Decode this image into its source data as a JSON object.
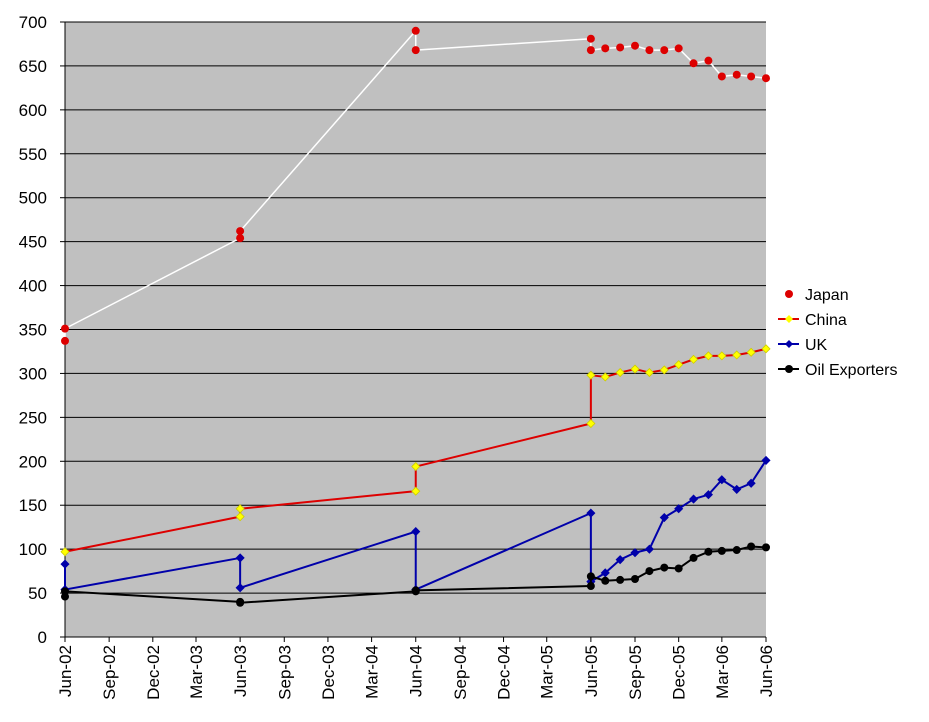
{
  "chart_data": {
    "type": "line",
    "title": "",
    "xlabel": "",
    "ylabel": "",
    "ylim": [
      0,
      700
    ],
    "yticks": [
      0,
      50,
      100,
      150,
      200,
      250,
      300,
      350,
      400,
      450,
      500,
      550,
      600,
      650,
      700
    ],
    "xlim": [
      "2002-06-01",
      "2006-06-01"
    ],
    "x_tick_dates": [
      "2002-06-01",
      "2002-09-01",
      "2002-12-01",
      "2003-03-01",
      "2003-06-01",
      "2003-09-01",
      "2003-12-01",
      "2004-03-01",
      "2004-06-01",
      "2004-09-01",
      "2004-12-01",
      "2005-03-01",
      "2005-06-01",
      "2005-09-01",
      "2005-12-01",
      "2006-03-01",
      "2006-06-01"
    ],
    "x_tick_labels": [
      "Jun-02",
      "Sep-02",
      "Dec-02",
      "Mar-03",
      "Jun-03",
      "Sep-03",
      "Dec-03",
      "Mar-04",
      "Jun-04",
      "Sep-04",
      "Dec-04",
      "Mar-05",
      "Jun-05",
      "Sep-05",
      "Dec-05",
      "Mar-06",
      "Jun-06"
    ],
    "grid": true,
    "plot_background": "#c0c0c0",
    "legend_position": "right",
    "series": [
      {
        "name": "Japan",
        "color": "#dd0000",
        "line_color": "#ffffff",
        "marker": "circle",
        "show_in_legend_line": false,
        "points": [
          [
            "2002-06-01",
            337
          ],
          [
            "2002-06-01",
            351
          ],
          [
            "2003-06-01",
            454
          ],
          [
            "2003-06-01",
            462
          ],
          [
            "2004-06-01",
            690
          ],
          [
            "2004-06-01",
            668
          ],
          [
            "2005-06-01",
            681
          ],
          [
            "2005-06-01",
            668
          ],
          [
            "2005-07-01",
            670
          ],
          [
            "2005-08-01",
            671
          ],
          [
            "2005-09-01",
            673
          ],
          [
            "2005-10-01",
            668
          ],
          [
            "2005-11-01",
            668
          ],
          [
            "2005-12-01",
            670
          ],
          [
            "2006-01-01",
            653
          ],
          [
            "2006-02-01",
            656
          ],
          [
            "2006-03-01",
            638
          ],
          [
            "2006-04-01",
            640
          ],
          [
            "2006-05-01",
            638
          ],
          [
            "2006-06-01",
            636
          ]
        ]
      },
      {
        "name": "China",
        "color": "#dd0000",
        "marker_color": "#ffff00",
        "marker": "diamond",
        "points": [
          [
            "2002-06-01",
            97
          ],
          [
            "2003-06-01",
            137
          ],
          [
            "2003-06-01",
            146
          ],
          [
            "2004-06-01",
            166
          ],
          [
            "2004-06-01",
            194
          ],
          [
            "2005-06-01",
            243
          ],
          [
            "2005-06-01",
            298
          ],
          [
            "2005-07-01",
            296
          ],
          [
            "2005-08-01",
            301
          ],
          [
            "2005-09-01",
            305
          ],
          [
            "2005-10-01",
            301
          ],
          [
            "2005-11-01",
            304
          ],
          [
            "2005-12-01",
            310
          ],
          [
            "2006-01-01",
            316
          ],
          [
            "2006-02-01",
            320
          ],
          [
            "2006-03-01",
            320
          ],
          [
            "2006-04-01",
            321
          ],
          [
            "2006-05-01",
            324
          ],
          [
            "2006-06-01",
            328
          ]
        ]
      },
      {
        "name": "UK",
        "color": "#0000aa",
        "marker_color": "#0000aa",
        "marker": "diamond",
        "points": [
          [
            "2002-06-01",
            83
          ],
          [
            "2002-06-01",
            54
          ],
          [
            "2003-06-01",
            90
          ],
          [
            "2003-06-01",
            56
          ],
          [
            "2004-06-01",
            120
          ],
          [
            "2004-06-01",
            54
          ],
          [
            "2005-06-01",
            141
          ],
          [
            "2005-06-01",
            63
          ],
          [
            "2005-07-01",
            73
          ],
          [
            "2005-08-01",
            88
          ],
          [
            "2005-09-01",
            96
          ],
          [
            "2005-10-01",
            100
          ],
          [
            "2005-11-01",
            136
          ],
          [
            "2005-12-01",
            146
          ],
          [
            "2006-01-01",
            157
          ],
          [
            "2006-02-01",
            162
          ],
          [
            "2006-03-01",
            179
          ],
          [
            "2006-04-01",
            168
          ],
          [
            "2006-05-01",
            175
          ],
          [
            "2006-06-01",
            201
          ]
        ]
      },
      {
        "name": "Oil Exporters",
        "color": "#000000",
        "marker_color": "#000000",
        "marker": "circle",
        "points": [
          [
            "2002-06-01",
            46
          ],
          [
            "2002-06-01",
            52
          ],
          [
            "2003-06-01",
            40
          ],
          [
            "2003-06-01",
            39
          ],
          [
            "2004-06-01",
            52
          ],
          [
            "2004-06-01",
            53
          ],
          [
            "2005-06-01",
            58
          ],
          [
            "2005-06-01",
            69
          ],
          [
            "2005-07-01",
            64
          ],
          [
            "2005-08-01",
            65
          ],
          [
            "2005-09-01",
            66
          ],
          [
            "2005-10-01",
            75
          ],
          [
            "2005-11-01",
            79
          ],
          [
            "2005-12-01",
            78
          ],
          [
            "2006-01-01",
            90
          ],
          [
            "2006-02-01",
            97
          ],
          [
            "2006-03-01",
            98
          ],
          [
            "2006-04-01",
            99
          ],
          [
            "2006-05-01",
            103
          ],
          [
            "2006-06-01",
            102
          ]
        ]
      }
    ]
  }
}
